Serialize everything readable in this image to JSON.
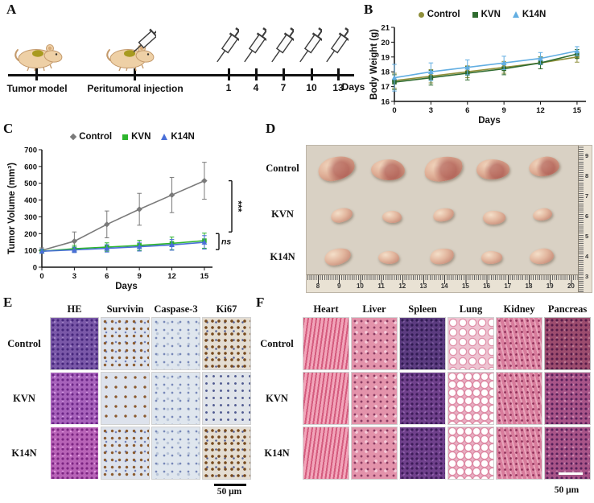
{
  "panels": {
    "A": {
      "label": "A",
      "timeline": {
        "tumor_model": "Tumor model",
        "injection": "Peritumoral injection",
        "days_label": "Days",
        "day_ticks": [
          "1",
          "4",
          "7",
          "10",
          "13"
        ]
      }
    },
    "B": {
      "label": "B"
    },
    "C": {
      "label": "C"
    },
    "D": {
      "label": "D",
      "rows": [
        "Control",
        "KVN",
        "K14N"
      ],
      "bottom_ruler": [
        "8",
        "9",
        "10",
        "11",
        "12",
        "13",
        "14",
        "15",
        "16",
        "17",
        "18",
        "19",
        "20"
      ],
      "right_ruler": [
        "9",
        "8",
        "7",
        "6",
        "5",
        "4",
        "3"
      ]
    },
    "E": {
      "label": "E",
      "columns": [
        "HE",
        "Survivin",
        "Caspase-3",
        "Ki67"
      ],
      "rows": [
        "Control",
        "KVN",
        "K14N"
      ],
      "scale_label": "50 μm"
    },
    "F": {
      "label": "F",
      "columns": [
        "Heart",
        "Liver",
        "Spleen",
        "Lung",
        "Kidney",
        "Pancreas"
      ],
      "rows": [
        "Control",
        "KVN",
        "K14N"
      ],
      "scale_label": "50 μm"
    }
  },
  "chart_data": [
    {
      "type": "line",
      "panel": "B",
      "title": "",
      "xlabel": "Days",
      "ylabel": "Body Weight (g)",
      "x": [
        0,
        3,
        6,
        9,
        12,
        15
      ],
      "xticks": [
        0,
        3,
        6,
        9,
        12,
        15
      ],
      "xlim": [
        0,
        15.6
      ],
      "ylim": [
        16,
        21
      ],
      "yticks": [
        16,
        17,
        18,
        19,
        20,
        21
      ],
      "grid": false,
      "legend_position": "top",
      "series": [
        {
          "name": "Control",
          "color": "#8f8f3a",
          "marker": "circle",
          "values": [
            17.4,
            17.7,
            18.0,
            18.3,
            18.6,
            19.0
          ],
          "errors": [
            0.5,
            0.45,
            0.4,
            0.4,
            0.4,
            0.35
          ]
        },
        {
          "name": "KVN",
          "color": "#2f6b2f",
          "marker": "square",
          "values": [
            17.3,
            17.6,
            17.9,
            18.2,
            18.6,
            19.2
          ],
          "errors": [
            0.5,
            0.5,
            0.45,
            0.4,
            0.4,
            0.3
          ]
        },
        {
          "name": "K14N",
          "color": "#62aee2",
          "marker": "triangle",
          "values": [
            17.6,
            18.0,
            18.3,
            18.6,
            18.9,
            19.4
          ],
          "errors": [
            0.9,
            0.6,
            0.5,
            0.45,
            0.4,
            0.3
          ]
        }
      ]
    },
    {
      "type": "line",
      "panel": "C",
      "title": "",
      "xlabel": "Days",
      "ylabel": "Tumor Volume (mm³)",
      "x": [
        0,
        3,
        6,
        9,
        12,
        15
      ],
      "xticks": [
        0,
        3,
        6,
        9,
        12,
        15
      ],
      "xlim": [
        0,
        15.6
      ],
      "ylim": [
        0,
        700
      ],
      "yticks": [
        0,
        100,
        200,
        300,
        400,
        500,
        600,
        700
      ],
      "grid": false,
      "legend_position": "top",
      "series": [
        {
          "name": "Control",
          "color": "#7a7a7a",
          "marker": "diamond",
          "values": [
            100,
            155,
            255,
            345,
            430,
            515
          ],
          "errors": [
            15,
            55,
            80,
            95,
            105,
            110
          ]
        },
        {
          "name": "KVN",
          "color": "#2db52d",
          "marker": "square",
          "values": [
            95,
            110,
            120,
            130,
            142,
            158
          ],
          "errors": [
            12,
            20,
            25,
            30,
            38,
            45
          ]
        },
        {
          "name": "K14N",
          "color": "#4a6fd8",
          "marker": "triangle",
          "values": [
            95,
            103,
            112,
            122,
            133,
            148
          ],
          "errors": [
            12,
            16,
            22,
            26,
            32,
            40
          ]
        }
      ],
      "annotations": [
        {
          "label": "***",
          "y_from": 515,
          "y_to": 210,
          "x_offset": 26,
          "rotate": true
        },
        {
          "label": "ns",
          "y_from": 200,
          "y_to": 105,
          "x_offset": 10,
          "rotate": false
        }
      ]
    }
  ]
}
